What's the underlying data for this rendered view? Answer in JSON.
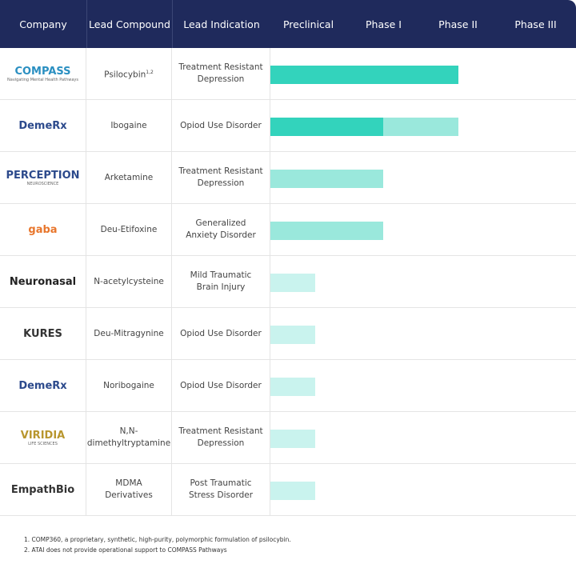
{
  "header": {
    "columns": [
      "Company",
      "Lead Compound",
      "Lead Indication",
      "Preclinical",
      "Phase I",
      "Phase II",
      "Phase III"
    ]
  },
  "rows": [
    {
      "company": "COMPASS",
      "company_sub": "Navigating Mental Health Pathways",
      "compound": "Psilocybin",
      "compound_sup": "1,2",
      "indication": "Treatment Resistant Depression",
      "segments": [
        {
          "value": 2.5,
          "color": "#33d3bc"
        }
      ]
    },
    {
      "company": "DemeRx",
      "compound": "Ibogaine",
      "indication": "Opiod Use Disorder",
      "segments": [
        {
          "value": 1.5,
          "color": "#33d3bc"
        },
        {
          "value": 1.0,
          "color": "#9ae8dc"
        }
      ]
    },
    {
      "company": "PERCEPTION",
      "company_sub": "NEUROSCIENCE",
      "compound": "Arketamine",
      "indication": "Treatment Resistant Depression",
      "segments": [
        {
          "value": 1.5,
          "color": "#9ae8dc"
        }
      ]
    },
    {
      "company": "gaba",
      "compound": "Deu-Etifoxine",
      "indication": "Generalized Anxiety Disorder",
      "segments": [
        {
          "value": 1.5,
          "color": "#9ae8dc"
        }
      ]
    },
    {
      "company": "Neuronasal",
      "compound": "N-acetylcysteine",
      "indication": "Mild Traumatic Brain Injury",
      "segments": [
        {
          "value": 0.6,
          "color": "#c9f3ee"
        }
      ]
    },
    {
      "company": "KURES",
      "compound": "Deu-Mitragynine",
      "indication": "Opiod Use Disorder",
      "segments": [
        {
          "value": 0.6,
          "color": "#c9f3ee"
        }
      ]
    },
    {
      "company": "DemeRx",
      "compound": "Noribogaine",
      "indication": "Opiod Use Disorder",
      "segments": [
        {
          "value": 0.6,
          "color": "#c9f3ee"
        }
      ]
    },
    {
      "company": "VIRIDIA",
      "company_sub": "LIFE SCIENCES",
      "compound": "N,N-dimethyltryptamine",
      "indication": "Treatment Resistant Depression",
      "segments": [
        {
          "value": 0.6,
          "color": "#c9f3ee"
        }
      ]
    },
    {
      "company": "EmpathBio",
      "compound": "MDMA Derivatives",
      "indication": "Post Traumatic Stress Disorder",
      "segments": [
        {
          "value": 0.6,
          "color": "#c9f3ee"
        }
      ]
    }
  ],
  "footnotes": [
    "1. COMP360, a proprietary, synthetic, high-purity, polymorphic formulation of psilocybin.",
    "2. ATAI does not provide operational support to COMPASS Pathways"
  ]
}
